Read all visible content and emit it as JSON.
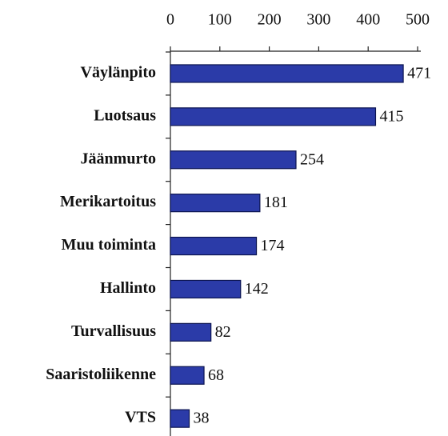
{
  "chart_data": {
    "type": "bar",
    "orientation": "horizontal",
    "categories": [
      "Väylänpito",
      "Luotsaus",
      "Jäänmurto",
      "Merikartoitus",
      "Muu toiminta",
      "Hallinto",
      "Turvallisuus",
      "Saaristoliikenne",
      "VTS"
    ],
    "values": [
      471,
      415,
      254,
      181,
      174,
      142,
      82,
      68,
      38
    ],
    "color": "#2b3ba8",
    "xlim": [
      0,
      500
    ],
    "xticks": [
      0,
      100,
      200,
      300,
      400,
      500
    ]
  }
}
